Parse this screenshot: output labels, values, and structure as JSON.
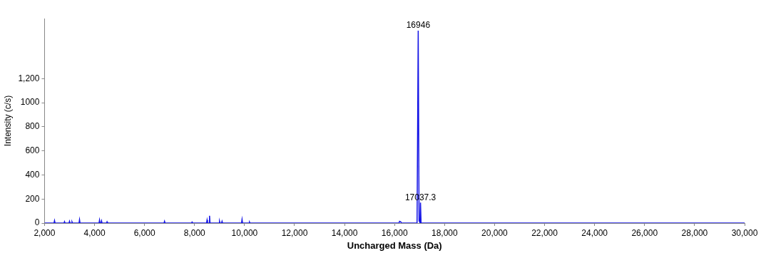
{
  "chart_data": {
    "type": "line",
    "x_label": "Uncharged Mass (Da)",
    "y_label": "Intensity (c/s)",
    "color": "#1414e6",
    "grid": false,
    "x": [
      2000,
      2380,
      2400,
      2420,
      2780,
      2800,
      2820,
      2980,
      3000,
      3020,
      3080,
      3100,
      3120,
      3380,
      3400,
      3420,
      4180,
      4200,
      4220,
      4260,
      4280,
      4300,
      4480,
      4500,
      4520,
      6780,
      6800,
      6820,
      7880,
      7900,
      7920,
      8480,
      8500,
      8520,
      8580,
      8600,
      8620,
      8980,
      9000,
      9020,
      9080,
      9100,
      9120,
      9880,
      9900,
      9920,
      10180,
      10200,
      10220,
      16180,
      16200,
      16250,
      16270,
      16900,
      16946,
      16980,
      17020,
      17037.3,
      17060,
      30000
    ],
    "values": [
      0,
      0,
      20,
      0,
      0,
      12,
      0,
      0,
      15,
      0,
      0,
      10,
      0,
      0,
      28,
      0,
      0,
      25,
      0,
      0,
      18,
      0,
      0,
      10,
      0,
      0,
      15,
      0,
      0,
      8,
      0,
      0,
      25,
      0,
      0,
      60,
      0,
      0,
      15,
      0,
      0,
      15,
      0,
      0,
      30,
      0,
      0,
      8,
      0,
      0,
      15,
      10,
      0,
      0,
      1600,
      20,
      0,
      170,
      0,
      0
    ],
    "xlim": [
      2000,
      30000
    ],
    "xticks": [
      {
        "value": 2000,
        "label": "2,000"
      },
      {
        "value": 4000,
        "label": "4,000"
      },
      {
        "value": 6000,
        "label": "6,000"
      },
      {
        "value": 8000,
        "label": "8,000"
      },
      {
        "value": 10000,
        "label": "10,000"
      },
      {
        "value": 12000,
        "label": "12,000"
      },
      {
        "value": 14000,
        "label": "14,000"
      },
      {
        "value": 16000,
        "label": "16,000"
      },
      {
        "value": 18000,
        "label": "18,000"
      },
      {
        "value": 20000,
        "label": "20,000"
      },
      {
        "value": 22000,
        "label": "22,000"
      },
      {
        "value": 24000,
        "label": "24,000"
      },
      {
        "value": 26000,
        "label": "26,000"
      },
      {
        "value": 28000,
        "label": "28,000"
      },
      {
        "value": 30000,
        "label": "30,000"
      }
    ],
    "ylim": [
      0,
      1700
    ],
    "yticks": [
      0,
      200,
      400,
      600,
      800,
      1000,
      {
        "value": 1200,
        "label": "1,200"
      }
    ],
    "annotations": [
      {
        "text": "16946",
        "x": 16946,
        "y": 1600
      },
      {
        "text": "17037.3",
        "x": 17037.3,
        "y": 170
      }
    ]
  }
}
